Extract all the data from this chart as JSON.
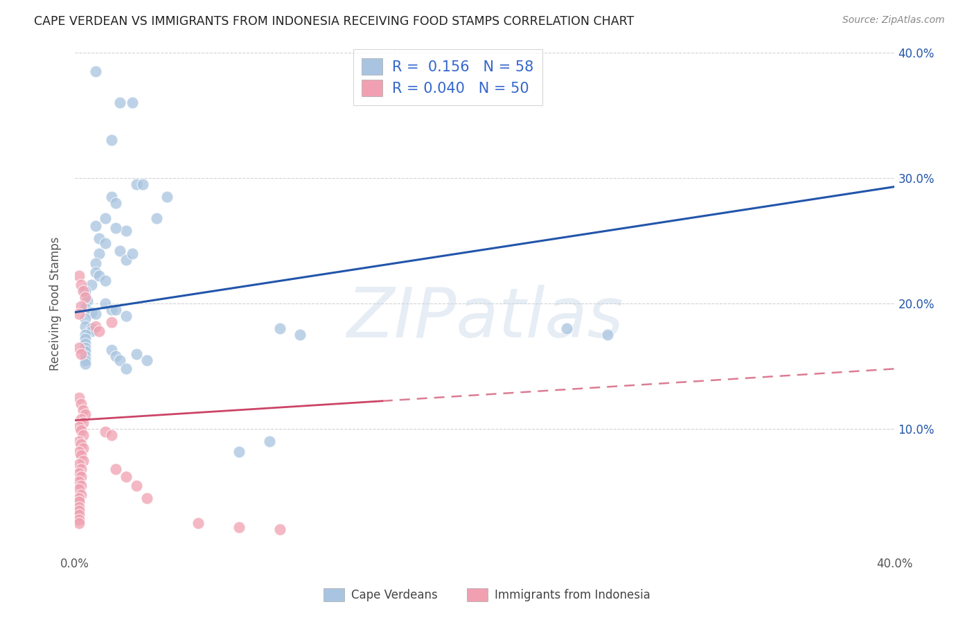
{
  "title": "CAPE VERDEAN VS IMMIGRANTS FROM INDONESIA RECEIVING FOOD STAMPS CORRELATION CHART",
  "source": "Source: ZipAtlas.com",
  "ylabel": "Receiving Food Stamps",
  "xlabel": "",
  "xlim": [
    0.0,
    0.4
  ],
  "ylim": [
    0.0,
    0.4
  ],
  "ytick_positions": [
    0.1,
    0.2,
    0.3,
    0.4
  ],
  "ytick_labels": [
    "10.0%",
    "20.0%",
    "30.0%",
    "40.0%"
  ],
  "xtick_positions": [
    0.0,
    0.05,
    0.1,
    0.15,
    0.2,
    0.25,
    0.3,
    0.35,
    0.4
  ],
  "xtick_labels": [
    "0.0%",
    "",
    "",
    "",
    "",
    "",
    "",
    "",
    "40.0%"
  ],
  "watermark": "ZIPatlas",
  "blue_color": "#A8C4E0",
  "pink_color": "#F0A0B0",
  "blue_line_color": "#2255AA",
  "pink_line_color": "#CC4466",
  "R_blue": 0.156,
  "N_blue": 58,
  "R_pink": 0.04,
  "N_pink": 50,
  "blue_line_x0": 0.0,
  "blue_line_y0": 0.193,
  "blue_line_x1": 0.4,
  "blue_line_y1": 0.293,
  "pink_line_x0": 0.0,
  "pink_line_y0": 0.107,
  "pink_line_x1": 0.4,
  "pink_line_y1": 0.148,
  "blue_scatter": [
    [
      0.01,
      0.385
    ],
    [
      0.022,
      0.36
    ],
    [
      0.028,
      0.36
    ],
    [
      0.018,
      0.33
    ],
    [
      0.018,
      0.285
    ],
    [
      0.02,
      0.28
    ],
    [
      0.015,
      0.268
    ],
    [
      0.025,
      0.258
    ],
    [
      0.03,
      0.295
    ],
    [
      0.033,
      0.295
    ],
    [
      0.022,
      0.242
    ],
    [
      0.02,
      0.26
    ],
    [
      0.025,
      0.235
    ],
    [
      0.028,
      0.24
    ],
    [
      0.04,
      0.268
    ],
    [
      0.045,
      0.285
    ],
    [
      0.01,
      0.262
    ],
    [
      0.012,
      0.252
    ],
    [
      0.015,
      0.248
    ],
    [
      0.012,
      0.24
    ],
    [
      0.01,
      0.232
    ],
    [
      0.01,
      0.225
    ],
    [
      0.012,
      0.222
    ],
    [
      0.015,
      0.218
    ],
    [
      0.008,
      0.215
    ],
    [
      0.005,
      0.21
    ],
    [
      0.006,
      0.202
    ],
    [
      0.005,
      0.196
    ],
    [
      0.008,
      0.193
    ],
    [
      0.01,
      0.192
    ],
    [
      0.005,
      0.188
    ],
    [
      0.005,
      0.182
    ],
    [
      0.008,
      0.18
    ],
    [
      0.008,
      0.178
    ],
    [
      0.005,
      0.175
    ],
    [
      0.005,
      0.172
    ],
    [
      0.005,
      0.168
    ],
    [
      0.005,
      0.165
    ],
    [
      0.005,
      0.162
    ],
    [
      0.005,
      0.158
    ],
    [
      0.005,
      0.155
    ],
    [
      0.005,
      0.152
    ],
    [
      0.015,
      0.2
    ],
    [
      0.018,
      0.195
    ],
    [
      0.02,
      0.195
    ],
    [
      0.025,
      0.19
    ],
    [
      0.018,
      0.163
    ],
    [
      0.02,
      0.158
    ],
    [
      0.022,
      0.155
    ],
    [
      0.025,
      0.148
    ],
    [
      0.03,
      0.16
    ],
    [
      0.035,
      0.155
    ],
    [
      0.1,
      0.18
    ],
    [
      0.11,
      0.175
    ],
    [
      0.24,
      0.18
    ],
    [
      0.26,
      0.175
    ],
    [
      0.08,
      0.082
    ],
    [
      0.095,
      0.09
    ]
  ],
  "pink_scatter": [
    [
      0.002,
      0.222
    ],
    [
      0.003,
      0.215
    ],
    [
      0.004,
      0.21
    ],
    [
      0.005,
      0.205
    ],
    [
      0.003,
      0.198
    ],
    [
      0.002,
      0.192
    ],
    [
      0.018,
      0.185
    ],
    [
      0.01,
      0.182
    ],
    [
      0.012,
      0.178
    ],
    [
      0.002,
      0.165
    ],
    [
      0.003,
      0.16
    ],
    [
      0.002,
      0.125
    ],
    [
      0.003,
      0.12
    ],
    [
      0.004,
      0.115
    ],
    [
      0.005,
      0.112
    ],
    [
      0.003,
      0.108
    ],
    [
      0.004,
      0.105
    ],
    [
      0.002,
      0.102
    ],
    [
      0.003,
      0.099
    ],
    [
      0.004,
      0.095
    ],
    [
      0.002,
      0.09
    ],
    [
      0.003,
      0.088
    ],
    [
      0.004,
      0.085
    ],
    [
      0.002,
      0.082
    ],
    [
      0.003,
      0.079
    ],
    [
      0.004,
      0.075
    ],
    [
      0.002,
      0.072
    ],
    [
      0.003,
      0.068
    ],
    [
      0.002,
      0.065
    ],
    [
      0.003,
      0.062
    ],
    [
      0.002,
      0.058
    ],
    [
      0.003,
      0.055
    ],
    [
      0.002,
      0.052
    ],
    [
      0.003,
      0.048
    ],
    [
      0.002,
      0.045
    ],
    [
      0.002,
      0.042
    ],
    [
      0.002,
      0.038
    ],
    [
      0.002,
      0.035
    ],
    [
      0.002,
      0.032
    ],
    [
      0.002,
      0.028
    ],
    [
      0.002,
      0.025
    ],
    [
      0.015,
      0.098
    ],
    [
      0.018,
      0.095
    ],
    [
      0.02,
      0.068
    ],
    [
      0.025,
      0.062
    ],
    [
      0.03,
      0.055
    ],
    [
      0.035,
      0.045
    ],
    [
      0.06,
      0.025
    ],
    [
      0.08,
      0.022
    ],
    [
      0.1,
      0.02
    ]
  ]
}
